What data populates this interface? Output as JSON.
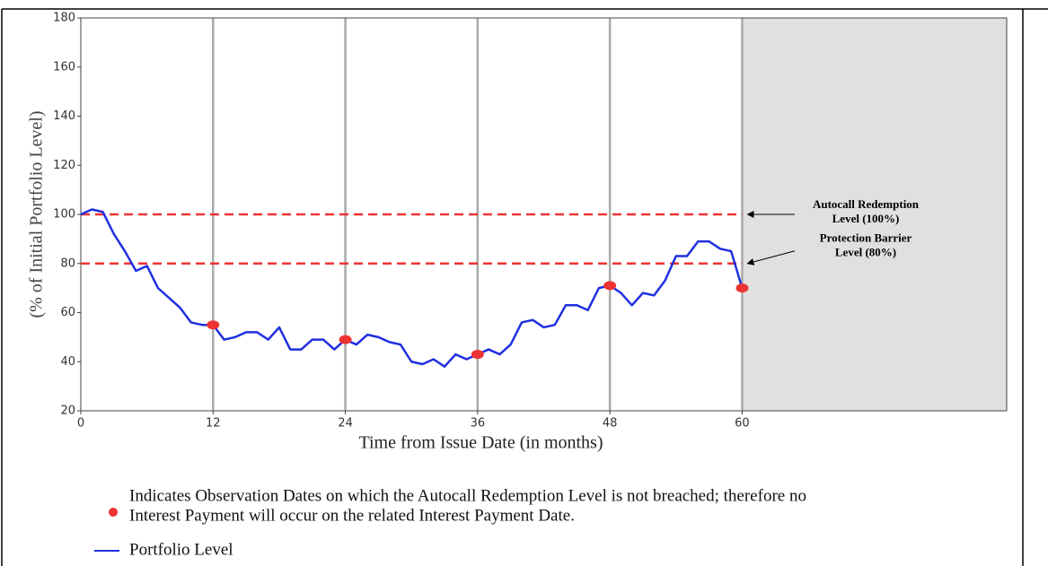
{
  "chart_data": {
    "type": "line",
    "ylabel": "(% of Initial Portfolio Level)",
    "xlabel": "Time from Issue Date (in months)",
    "x": [
      0,
      1,
      2,
      3,
      4,
      5,
      6,
      7,
      8,
      9,
      10,
      11,
      12,
      13,
      14,
      15,
      16,
      17,
      18,
      19,
      20,
      21,
      22,
      23,
      24,
      25,
      26,
      27,
      28,
      29,
      30,
      31,
      32,
      33,
      34,
      35,
      36,
      37,
      38,
      39,
      40,
      41,
      42,
      43,
      44,
      45,
      46,
      47,
      48,
      49,
      50,
      51,
      52,
      53,
      54,
      55,
      56,
      57,
      58,
      59,
      60
    ],
    "series": [
      {
        "name": "Portfolio Level",
        "color": "#1f2fe0",
        "values": [
          100,
          102,
          101,
          92,
          85,
          77,
          79,
          70,
          66,
          62,
          56,
          55,
          55,
          49,
          50,
          52,
          52,
          49,
          54,
          45,
          45,
          49,
          49,
          45,
          49,
          47,
          51,
          50,
          48,
          47,
          40,
          39,
          41,
          38,
          43,
          41,
          43,
          45,
          43,
          47,
          56,
          57,
          54,
          55,
          63,
          63,
          61,
          70,
          71,
          68,
          63,
          68,
          67,
          73,
          83,
          83,
          89,
          89,
          86,
          85,
          70
        ]
      }
    ],
    "observations": {
      "x": [
        12,
        24,
        36,
        48,
        60
      ],
      "values": [
        55,
        49,
        43,
        71,
        70
      ],
      "color": "#ee3333",
      "label": [
        "Indicates Observation Dates on which the Autocall Redemption Level is not breached; therefore no",
        "Interest Payment will occur on the related Interest Payment Date."
      ]
    },
    "levels": [
      {
        "y": 100,
        "label": [
          "Autocall Redemption",
          "Level (100%)"
        ]
      },
      {
        "y": 80,
        "label": [
          "Protection Barrier",
          "Level (80%)"
        ]
      }
    ],
    "level_color": "#ee3333",
    "vlines": [
      12,
      24,
      36,
      48,
      60
    ],
    "shade": [
      60,
      84
    ],
    "xlim": [
      0,
      84
    ],
    "ylim": [
      20,
      180
    ],
    "xticks": [
      0,
      12,
      24,
      36,
      48,
      60
    ],
    "yticks": [
      20,
      40,
      60,
      80,
      100,
      120,
      140,
      160,
      180
    ]
  }
}
